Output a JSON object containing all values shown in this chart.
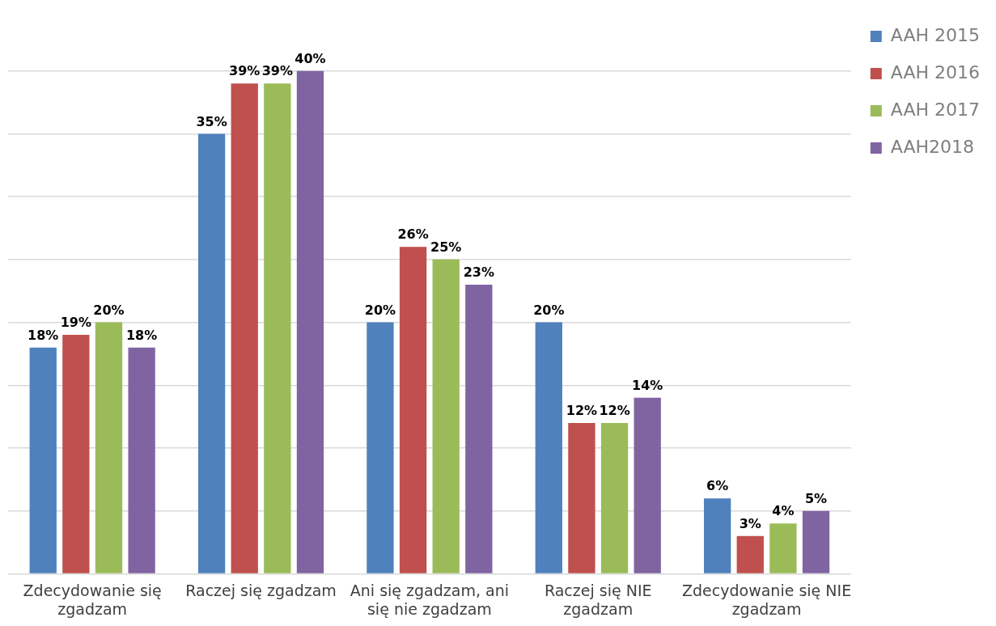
{
  "chart_data": {
    "type": "bar",
    "categories": [
      "Zdecydowanie się zgadzam",
      "Raczej się zgadzam",
      "Ani się zgadzam, ani się nie zgadzam",
      "Raczej się NIE zgadzam",
      "Zdecydowanie się NIE zgadzam"
    ],
    "series": [
      {
        "name": "AAH 2015",
        "color": "#4f81bd",
        "values": [
          18,
          35,
          20,
          20,
          6
        ],
        "value_labels": [
          "18%",
          "35%",
          "20%",
          "20%",
          "6%"
        ]
      },
      {
        "name": "AAH 2016",
        "color": "#c0504d",
        "values": [
          19,
          39,
          26,
          12,
          3
        ],
        "value_labels": [
          "19%",
          "39%",
          "26%",
          "12%",
          "3%"
        ]
      },
      {
        "name": "AAH 2017",
        "color": "#9bbb59",
        "values": [
          20,
          39,
          25,
          12,
          4
        ],
        "value_labels": [
          "20%",
          "39%",
          "25%",
          "12%",
          "4%"
        ]
      },
      {
        "name": "AAH2018",
        "color": "#8064a2",
        "values": [
          18,
          40,
          23,
          14,
          5
        ],
        "value_labels": [
          "18%",
          "40%",
          "23%",
          "14%",
          "5%"
        ]
      }
    ],
    "yticks": [
      {
        "value": 0,
        "label": null
      },
      {
        "value": 5,
        "label": null
      },
      {
        "value": 10,
        "label": null
      },
      {
        "value": 15,
        "label": null
      },
      {
        "value": 20,
        "label": null
      },
      {
        "value": 25,
        "label": null
      },
      {
        "value": 30,
        "label": null
      },
      {
        "value": 35,
        "label": null
      },
      {
        "value": 40,
        "label": null
      }
    ],
    "grid": "y",
    "legend": "top right",
    "tick_labels": "x"
  }
}
